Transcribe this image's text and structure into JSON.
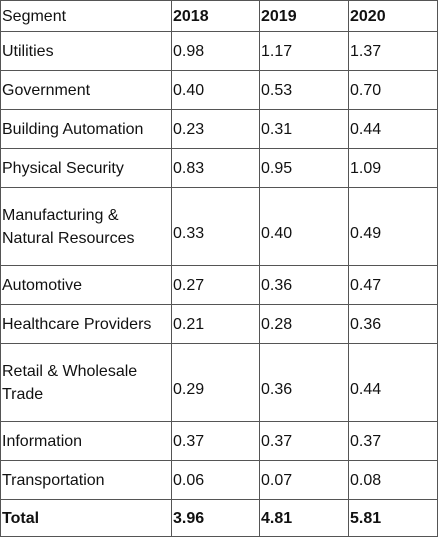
{
  "table": {
    "headers": [
      "Segment",
      "2018",
      "2019",
      "2020"
    ],
    "rows": [
      {
        "segment": "Utilities",
        "y2018": "0.98",
        "y2019": "1.17",
        "y2020": "1.37"
      },
      {
        "segment": "Government",
        "y2018": "0.40",
        "y2019": "0.53",
        "y2020": "0.70"
      },
      {
        "segment": "Building Automation",
        "y2018": "0.23",
        "y2019": "0.31",
        "y2020": "0.44"
      },
      {
        "segment": "Physical Security",
        "y2018": "0.83",
        "y2019": "0.95",
        "y2020": "1.09"
      },
      {
        "segment": "Manufacturing & Natural Resources",
        "y2018": "0.33",
        "y2019": "0.40",
        "y2020": "0.49"
      },
      {
        "segment": "Automotive",
        "y2018": "0.27",
        "y2019": "0.36",
        "y2020": "0.47"
      },
      {
        "segment": "Healthcare Providers",
        "y2018": "0.21",
        "y2019": "0.28",
        "y2020": "0.36"
      },
      {
        "segment": "Retail & Wholesale Trade",
        "y2018": "0.29",
        "y2019": "0.36",
        "y2020": "0.44"
      },
      {
        "segment": "Information",
        "y2018": "0.37",
        "y2019": "0.37",
        "y2020": "0.37"
      },
      {
        "segment": "Transportation",
        "y2018": "0.06",
        "y2019": "0.07",
        "y2020": "0.08"
      }
    ],
    "total": {
      "segment": "Total",
      "y2018": "3.96",
      "y2019": "4.81",
      "y2020": "5.81"
    }
  }
}
